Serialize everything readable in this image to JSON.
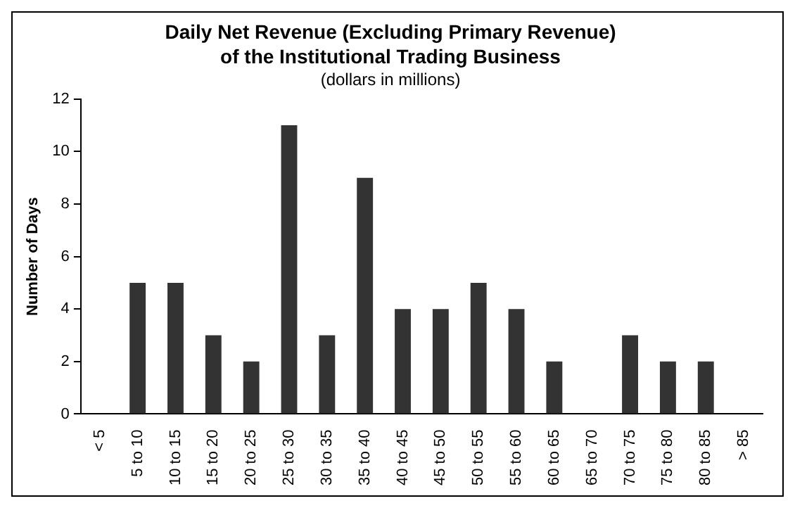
{
  "chart_data": {
    "type": "bar",
    "title": "Daily Net Revenue (Excluding Primary Revenue)\nof the Institutional Trading Business",
    "subtitle": "(dollars in millions)",
    "ylabel": "Number of Days",
    "categories": [
      "< 5",
      "5 to 10",
      "10 to 15",
      "15 to 20",
      "20 to 25",
      "25 to 30",
      "30 to 35",
      "35 to 40",
      "40 to 45",
      "45 to 50",
      "50 to 55",
      "55 to 60",
      "60 to 65",
      "65 to 70",
      "70 to 75",
      "75 to 80",
      "80 to 85",
      "> 85"
    ],
    "values": [
      0,
      5,
      5,
      3,
      2,
      11,
      3,
      9,
      4,
      4,
      5,
      4,
      2,
      0,
      3,
      2,
      2,
      0
    ],
    "color": "#333333",
    "ylim": [
      0,
      12
    ],
    "yticks": [
      0,
      2,
      4,
      6,
      8,
      10,
      12
    ],
    "grid": false,
    "legend": false
  }
}
